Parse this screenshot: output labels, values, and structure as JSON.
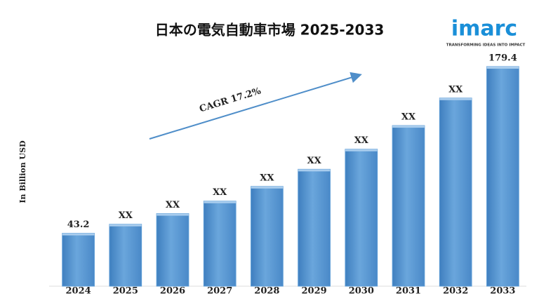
{
  "chart_data": {
    "type": "bar",
    "title": "日本の電気自動車市場 2025-2033",
    "y_label": "In Billion USD",
    "annotation": "CAGR 17.2%",
    "categories": [
      "2024",
      "2025",
      "2026",
      "2027",
      "2028",
      "2029",
      "2030",
      "2031",
      "2032",
      "2033"
    ],
    "values": [
      43.2,
      50.6,
      59.3,
      69.5,
      81.5,
      95.5,
      111.9,
      131.2,
      153.7,
      179.4
    ],
    "value_labels": [
      "43.2",
      "XX",
      "XX",
      "XX",
      "XX",
      "XX",
      "XX",
      "XX",
      "XX",
      "179.4"
    ],
    "color": "#5b9bd5",
    "ylim": [
      0,
      200
    ]
  },
  "logo": {
    "name": "imarc",
    "tagline": "TRANSFORMING IDEAS INTO IMPACT"
  }
}
